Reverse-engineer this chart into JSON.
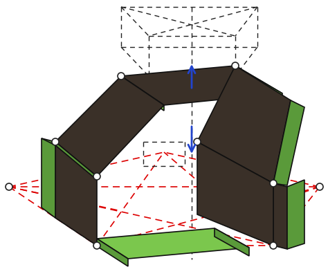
{
  "bg_color": "#ffffff",
  "dark_panel_color": "#3a3028",
  "green_panel_color": "#5a9a3a",
  "light_green_color": "#7bc74d",
  "joint_color": "#222222",
  "arrow_color": "#2244cc",
  "red_dashed_color": "#dd0000",
  "dashed_box_color": "#222222",
  "figsize": [
    4.74,
    3.99
  ],
  "dpi": 100
}
